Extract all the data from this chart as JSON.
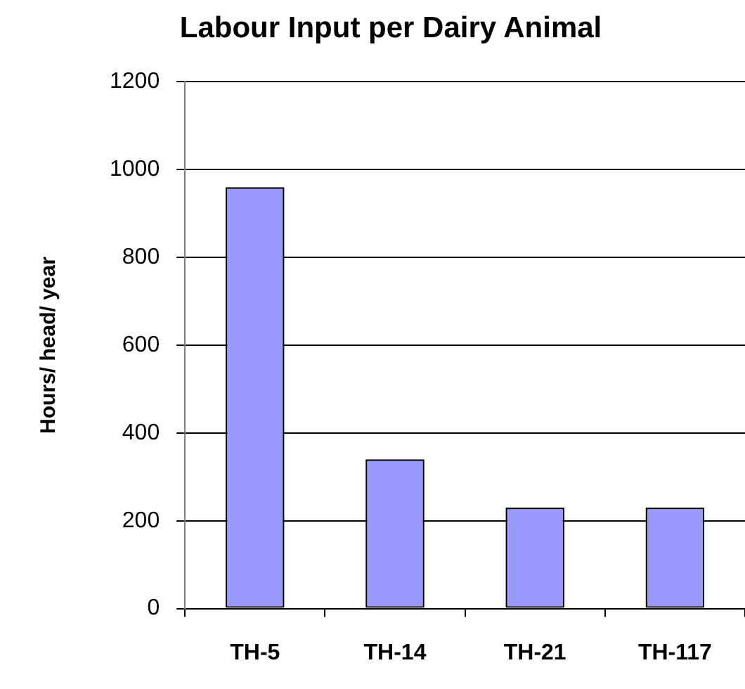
{
  "chart_data": {
    "type": "bar",
    "title": "Labour Input per Dairy Animal",
    "ylabel": "Hours/ head/ year",
    "categories": [
      "TH-5",
      "TH-14",
      "TH-21",
      "TH-117"
    ],
    "values": [
      960,
      340,
      230,
      230
    ],
    "color": "#9999ff",
    "ylim": [
      0,
      1200
    ],
    "yticks": [
      0,
      200,
      400,
      600,
      800,
      1000,
      1200
    ],
    "grid": "y"
  }
}
